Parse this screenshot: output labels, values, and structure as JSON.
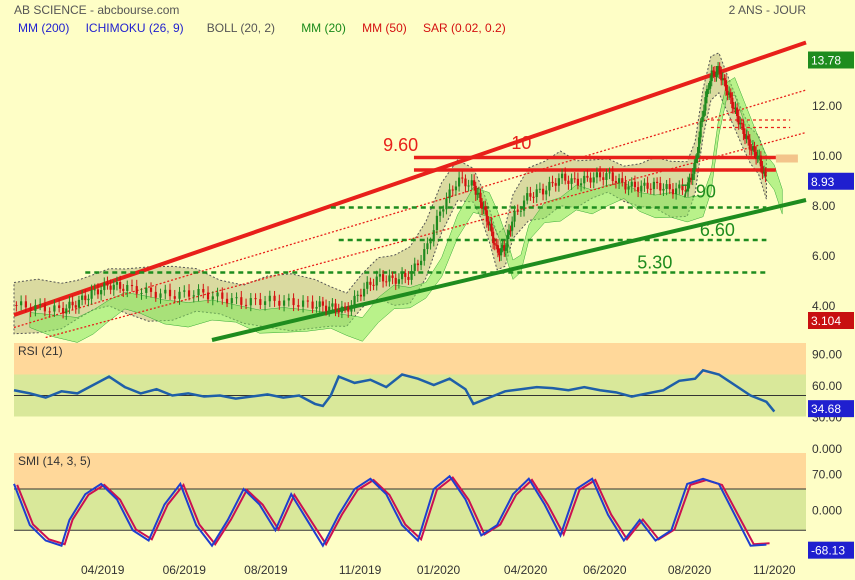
{
  "header": {
    "title": "AB SCIENCE - abcbourse.com",
    "period": "2 ANS - JOUR"
  },
  "indicators": [
    {
      "label": "MM (200)",
      "color": "#1f1fcf"
    },
    {
      "label": "ICHIMOKU (26, 9)",
      "color": "#1f1fcf"
    },
    {
      "label": "BOLL (20, 2)",
      "color": "#555555"
    },
    {
      "label": "MM (20)",
      "color": "#1a8a1a"
    },
    {
      "label": "MM (50)",
      "color": "#d41010"
    },
    {
      "label": "SAR (0.02, 0.2)",
      "color": "#d41010"
    }
  ],
  "colors": {
    "background": "#fefec6",
    "candle_up": "#1f8a1f",
    "candle_down": "#d41010",
    "trend_red": "#e8201a",
    "trend_green": "#1e8c1e",
    "rsi_line": "#1f5fa8",
    "smi_line": "#1f3fcf",
    "smi_signal": "#cc1050",
    "zone_orange": "#ffd89a",
    "zone_green": "#d9e89a",
    "badge_blue": "#1f1fcf",
    "badge_red": "#c81010"
  },
  "chart_data": [
    {
      "type": "candlestick",
      "name": "price",
      "y_ticks": [
        4.0,
        6.0,
        8.0,
        10.0,
        12.0,
        14.0
      ],
      "y_tick_labels": [
        "4.00",
        "6.00",
        "8.00",
        "10.00",
        "12.00",
        "14.00"
      ],
      "ylim": [
        2.6,
        14.6
      ],
      "x_labels": [
        "04/2019",
        "06/2019",
        "08/2019",
        "11/2019",
        "01/2020",
        "04/2020",
        "06/2020",
        "08/2020",
        "11/2020"
      ],
      "x_label_pos": [
        0.112,
        0.215,
        0.318,
        0.437,
        0.536,
        0.646,
        0.746,
        0.853,
        0.96
      ],
      "close_series": [
        [
          0.0,
          4.0
        ],
        [
          0.03,
          3.9
        ],
        [
          0.06,
          3.8
        ],
        [
          0.08,
          4.1
        ],
        [
          0.1,
          4.5
        ],
        [
          0.12,
          4.8
        ],
        [
          0.14,
          4.7
        ],
        [
          0.17,
          4.5
        ],
        [
          0.2,
          4.4
        ],
        [
          0.23,
          4.5
        ],
        [
          0.26,
          4.3
        ],
        [
          0.29,
          4.1
        ],
        [
          0.32,
          4.2
        ],
        [
          0.35,
          4.1
        ],
        [
          0.38,
          4.0
        ],
        [
          0.4,
          3.9
        ],
        [
          0.42,
          3.8
        ],
        [
          0.44,
          4.6
        ],
        [
          0.46,
          5.1
        ],
        [
          0.48,
          5.0
        ],
        [
          0.5,
          5.2
        ],
        [
          0.52,
          6.2
        ],
        [
          0.54,
          7.9
        ],
        [
          0.56,
          9.0
        ],
        [
          0.58,
          8.8
        ],
        [
          0.59,
          8.1
        ],
        [
          0.6,
          7.2
        ],
        [
          0.61,
          6.1
        ],
        [
          0.62,
          6.3
        ],
        [
          0.63,
          7.5
        ],
        [
          0.65,
          8.4
        ],
        [
          0.67,
          8.6
        ],
        [
          0.69,
          9.1
        ],
        [
          0.71,
          8.9
        ],
        [
          0.73,
          9.1
        ],
        [
          0.75,
          9.2
        ],
        [
          0.77,
          8.8
        ],
        [
          0.79,
          8.7
        ],
        [
          0.81,
          8.8
        ],
        [
          0.83,
          8.6
        ],
        [
          0.85,
          8.7
        ],
        [
          0.86,
          9.6
        ],
        [
          0.87,
          11.8
        ],
        [
          0.88,
          13.2
        ],
        [
          0.89,
          13.4
        ],
        [
          0.9,
          12.6
        ],
        [
          0.91,
          11.8
        ],
        [
          0.92,
          11.0
        ],
        [
          0.93,
          10.3
        ],
        [
          0.94,
          9.9
        ],
        [
          0.95,
          8.93
        ]
      ],
      "last_price": "8.93",
      "last_high": "13.78",
      "volume_value": "3.104",
      "annotations": [
        {
          "text": "9.60",
          "value": 9.6
        },
        {
          "text": "10",
          "value": 10.0
        },
        {
          "text": "7.90",
          "value": 7.9
        },
        {
          "text": "6.60",
          "value": 6.6
        },
        {
          "text": "5.30",
          "value": 5.3
        }
      ],
      "horizontal_levels": {
        "red_solid": [
          9.9,
          9.4
        ],
        "red_dotted": [
          11.4,
          11.1
        ],
        "green_dotted": [
          7.9,
          6.6,
          5.3
        ]
      }
    },
    {
      "type": "line",
      "name": "RSI (21)",
      "label": "RSI (21)",
      "y_ticks": [
        0.0,
        30.0,
        60.0,
        90.0
      ],
      "y_tick_labels": [
        "0.000",
        "30.00",
        "60.00",
        "90.00"
      ],
      "ylim": [
        0,
        100
      ],
      "zones": [
        30,
        70
      ],
      "reference_line": 50,
      "current_value": "34.68",
      "values": [
        [
          0.0,
          55
        ],
        [
          0.02,
          52
        ],
        [
          0.04,
          48
        ],
        [
          0.06,
          54
        ],
        [
          0.08,
          52
        ],
        [
          0.1,
          60
        ],
        [
          0.12,
          68
        ],
        [
          0.14,
          58
        ],
        [
          0.16,
          52
        ],
        [
          0.18,
          56
        ],
        [
          0.2,
          50
        ],
        [
          0.22,
          52
        ],
        [
          0.24,
          49
        ],
        [
          0.26,
          50
        ],
        [
          0.28,
          47
        ],
        [
          0.3,
          49
        ],
        [
          0.32,
          51
        ],
        [
          0.34,
          48
        ],
        [
          0.36,
          50
        ],
        [
          0.38,
          42
        ],
        [
          0.39,
          40
        ],
        [
          0.4,
          50
        ],
        [
          0.41,
          68
        ],
        [
          0.43,
          62
        ],
        [
          0.45,
          65
        ],
        [
          0.47,
          58
        ],
        [
          0.49,
          70
        ],
        [
          0.51,
          66
        ],
        [
          0.53,
          60
        ],
        [
          0.55,
          66
        ],
        [
          0.57,
          56
        ],
        [
          0.58,
          42
        ],
        [
          0.6,
          48
        ],
        [
          0.62,
          54
        ],
        [
          0.64,
          56
        ],
        [
          0.66,
          58
        ],
        [
          0.68,
          57
        ],
        [
          0.7,
          55
        ],
        [
          0.72,
          58
        ],
        [
          0.74,
          55
        ],
        [
          0.76,
          53
        ],
        [
          0.78,
          49
        ],
        [
          0.8,
          52
        ],
        [
          0.82,
          55
        ],
        [
          0.84,
          64
        ],
        [
          0.86,
          66
        ],
        [
          0.87,
          74
        ],
        [
          0.89,
          70
        ],
        [
          0.91,
          60
        ],
        [
          0.93,
          50
        ],
        [
          0.95,
          44
        ],
        [
          0.96,
          34.68
        ]
      ]
    },
    {
      "type": "line",
      "name": "SMI (14, 3, 5)",
      "label": "SMI (14, 3, 5)",
      "y_ticks": [
        0.0,
        70.0
      ],
      "y_tick_labels": [
        "0.000",
        "70.00"
      ],
      "ylim": [
        -90,
        110
      ],
      "zones": [
        -40,
        40
      ],
      "current_value": "-68.13",
      "values": [
        [
          0.0,
          50
        ],
        [
          0.02,
          -30
        ],
        [
          0.04,
          -60
        ],
        [
          0.06,
          -70
        ],
        [
          0.07,
          -20
        ],
        [
          0.09,
          30
        ],
        [
          0.11,
          50
        ],
        [
          0.13,
          20
        ],
        [
          0.15,
          -40
        ],
        [
          0.17,
          -60
        ],
        [
          0.19,
          10
        ],
        [
          0.21,
          50
        ],
        [
          0.23,
          -30
        ],
        [
          0.25,
          -70
        ],
        [
          0.27,
          -20
        ],
        [
          0.29,
          40
        ],
        [
          0.31,
          10
        ],
        [
          0.33,
          -40
        ],
        [
          0.35,
          30
        ],
        [
          0.37,
          -20
        ],
        [
          0.39,
          -70
        ],
        [
          0.41,
          -10
        ],
        [
          0.43,
          40
        ],
        [
          0.45,
          60
        ],
        [
          0.47,
          30
        ],
        [
          0.49,
          -30
        ],
        [
          0.51,
          -60
        ],
        [
          0.53,
          40
        ],
        [
          0.55,
          65
        ],
        [
          0.57,
          20
        ],
        [
          0.59,
          -50
        ],
        [
          0.61,
          -30
        ],
        [
          0.63,
          30
        ],
        [
          0.65,
          60
        ],
        [
          0.67,
          10
        ],
        [
          0.69,
          -50
        ],
        [
          0.71,
          40
        ],
        [
          0.73,
          60
        ],
        [
          0.75,
          -10
        ],
        [
          0.77,
          -60
        ],
        [
          0.79,
          -20
        ],
        [
          0.81,
          -60
        ],
        [
          0.83,
          -40
        ],
        [
          0.85,
          50
        ],
        [
          0.87,
          60
        ],
        [
          0.89,
          50
        ],
        [
          0.91,
          -10
        ],
        [
          0.93,
          -70
        ],
        [
          0.95,
          -68
        ]
      ]
    }
  ]
}
